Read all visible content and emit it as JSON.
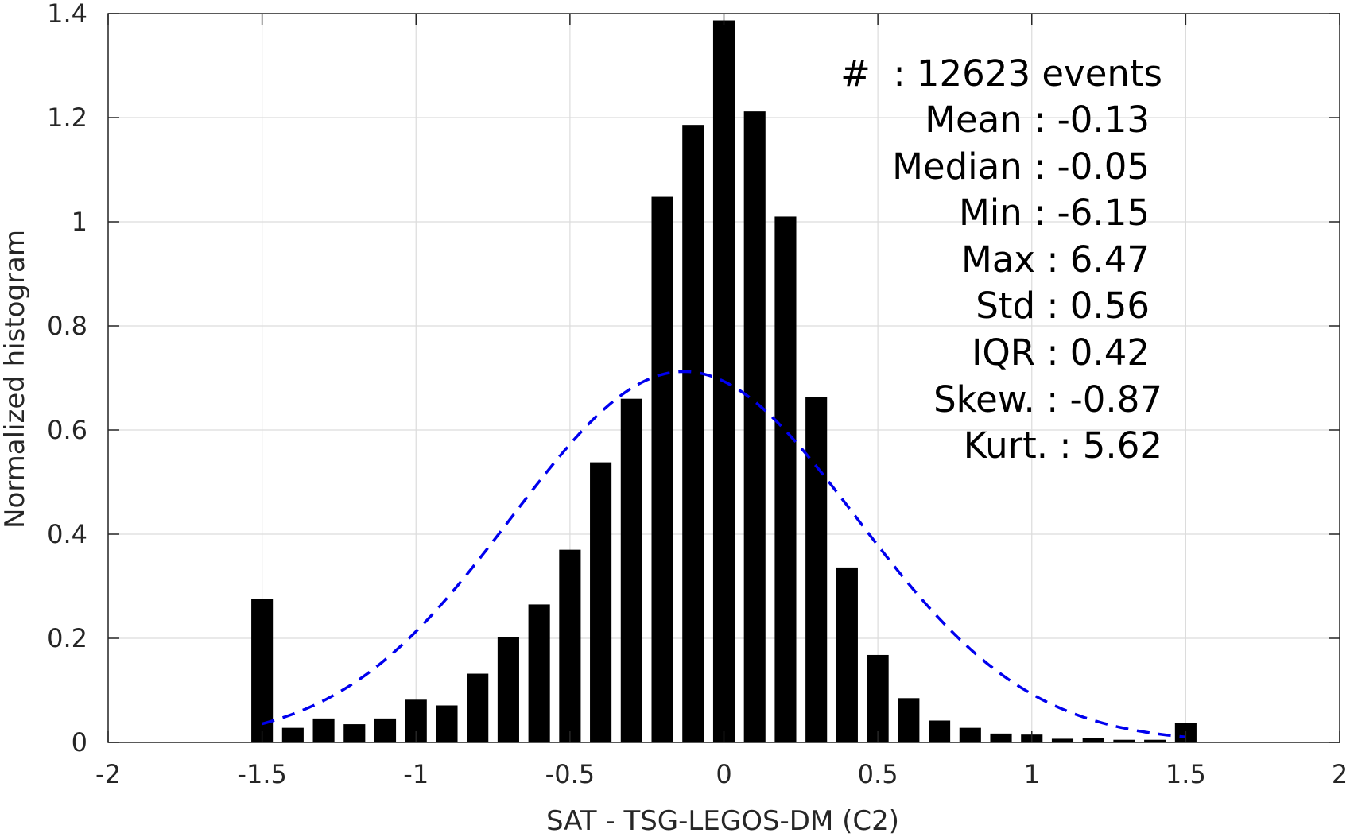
{
  "chart_data": {
    "type": "bar",
    "xlabel": "SAT - TSG-LEGOS-DM (C2)",
    "ylabel": "Normalized histogram",
    "xlim": [
      -2,
      2
    ],
    "ylim": [
      0,
      1.4
    ],
    "x_ticks": [
      -2,
      -1.5,
      -1,
      -0.5,
      0,
      0.5,
      1,
      1.5,
      2
    ],
    "x_tick_labels": [
      "-2",
      "-1.5",
      "-1",
      "-0.5",
      "0",
      "0.5",
      "1",
      "1.5",
      "2"
    ],
    "y_ticks": [
      0,
      0.2,
      0.4,
      0.6,
      0.8,
      1,
      1.2,
      1.4
    ],
    "y_tick_labels": [
      "0",
      "0.2",
      "0.4",
      "0.6",
      "0.8",
      "1",
      "1.2",
      "1.4"
    ],
    "grid": true,
    "bar_width": 0.07,
    "bar_color": "#000000",
    "bars": {
      "x": [
        -1.5,
        -1.4,
        -1.3,
        -1.2,
        -1.1,
        -1.0,
        -0.9,
        -0.8,
        -0.7,
        -0.6,
        -0.5,
        -0.4,
        -0.3,
        -0.2,
        -0.1,
        0.0,
        0.1,
        0.2,
        0.3,
        0.4,
        0.5,
        0.6,
        0.7,
        0.8,
        0.9,
        1.0,
        1.1,
        1.2,
        1.3,
        1.4,
        1.5
      ],
      "values": [
        0.275,
        0.028,
        0.046,
        0.035,
        0.046,
        0.082,
        0.071,
        0.132,
        0.202,
        0.265,
        0.37,
        0.538,
        0.66,
        1.048,
        1.186,
        1.387,
        1.212,
        1.01,
        0.663,
        0.336,
        0.168,
        0.085,
        0.042,
        0.028,
        0.017,
        0.015,
        0.007,
        0.008,
        0.005,
        0.005,
        0.038
      ]
    },
    "fit_curve": {
      "style": "dashed",
      "color": "#0000ee",
      "distribution": "normal",
      "mean": -0.13,
      "std": 0.56,
      "x_range": [
        -1.5,
        1.5
      ]
    },
    "stats": {
      "events": "#  : 12623 events",
      "mean": "Mean : -0.13",
      "median": "Median : -0.05",
      "min": "Min : -6.15",
      "max": "Max : 6.47",
      "std": "Std : 0.56",
      "iqr": "IQR : 0.42",
      "skew": "Skew. : -0.87",
      "kurt": "Kurt. : 5.62"
    }
  }
}
